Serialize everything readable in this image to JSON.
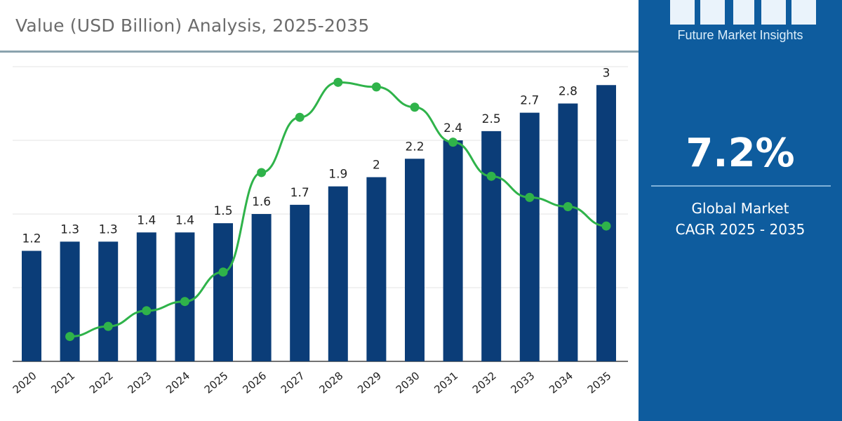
{
  "chart_data": {
    "type": "bar",
    "subtitle": "Value (USD Billion) Analysis, 2025-2035",
    "categories": [
      "2020",
      "2021",
      "2022",
      "2023",
      "2024",
      "2025",
      "2026",
      "2027",
      "2028",
      "2029",
      "2030",
      "2031",
      "2032",
      "2033",
      "2034",
      "2035"
    ],
    "values": [
      1.2,
      1.3,
      1.3,
      1.4,
      1.4,
      1.5,
      1.6,
      1.7,
      1.9,
      2,
      2.2,
      2.4,
      2.5,
      2.7,
      2.8,
      3
    ],
    "value_labels": [
      "1.2",
      "1.3",
      "1.3",
      "1.4",
      "1.4",
      "1.5",
      "1.6",
      "1.7",
      "1.9",
      "2",
      "2.2",
      "2.4",
      "2.5",
      "2.7",
      "2.8",
      "3"
    ],
    "ylim": [
      0,
      3.2
    ],
    "grid": true,
    "line_overlay": {
      "type": "line",
      "categories": [
        "2021",
        "2022",
        "2023",
        "2024",
        "2025",
        "2026",
        "2027",
        "2028",
        "2029",
        "2030",
        "2031",
        "2032",
        "2033",
        "2034",
        "2035"
      ],
      "values": [
        0.27,
        0.38,
        0.55,
        0.65,
        0.97,
        2.05,
        2.65,
        3.03,
        2.98,
        2.76,
        2.38,
        2.01,
        1.78,
        1.68,
        1.47
      ]
    },
    "colors": {
      "bar": "#0b3d78",
      "line": "#2fb34a",
      "grid": "#e3e3e3"
    }
  },
  "panel": {
    "brand": "Future Market Insights",
    "cagr_value": "7.2%",
    "cagr_label_line1": "Global Market",
    "cagr_label_line2": "CAGR 2025 - 2035",
    "background": "#0e5c9e"
  }
}
